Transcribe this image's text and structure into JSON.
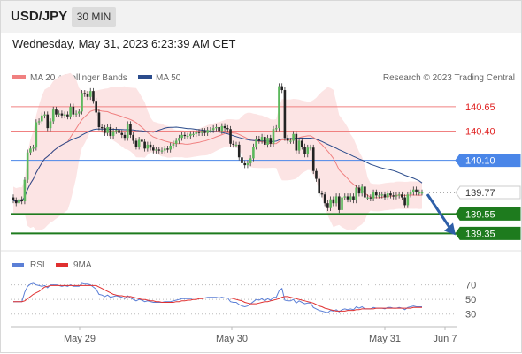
{
  "header": {
    "symbol": "USD/JPY",
    "timeframe": "30 MIN"
  },
  "datetime": "Wednesday, May 31, 2023 6:23:39 AM CET",
  "legend": {
    "ma20": "MA 20 + Bollinger Bands",
    "ma50": "MA 50",
    "ma20_color": "#f08080",
    "ma50_color": "#2b4c8c",
    "credit": "Research © 2023 Trading Central"
  },
  "rsi_legend": {
    "rsi": "RSI",
    "ma9": "9MA",
    "rsi_color": "#5b7fd6",
    "ma9_color": "#e03030"
  },
  "colors": {
    "up": "#5cb85c",
    "down": "#222222",
    "resistance": "#f08080",
    "pivot": "#4a86e8",
    "support": "#1e7b1e",
    "arrow": "#2e5fa8",
    "band": "#fce4e4"
  },
  "chart_data": [
    {
      "type": "candlestick",
      "title": "USD/JPY",
      "x_tick_labels": [
        "May 29",
        "May 30",
        "May 31",
        "Jun 7"
      ],
      "ylim": [
        139.2,
        140.92
      ],
      "levels": [
        {
          "label": "140.65",
          "value": 140.65,
          "kind": "resistance"
        },
        {
          "label": "140.40",
          "value": 140.4,
          "kind": "resistance"
        },
        {
          "label": "140.10",
          "value": 140.1,
          "kind": "pivot"
        },
        {
          "label": "139.77",
          "value": 139.77,
          "kind": "last"
        },
        {
          "label": "139.55",
          "value": 139.55,
          "kind": "support"
        },
        {
          "label": "139.35",
          "value": 139.35,
          "kind": "support"
        }
      ],
      "target_arrow": {
        "from": 139.77,
        "to": 139.35
      },
      "close": [
        139.69,
        139.66,
        139.7,
        139.68,
        139.9,
        140.18,
        140.22,
        140.23,
        140.49,
        140.5,
        140.56,
        140.57,
        140.43,
        140.5,
        140.62,
        140.57,
        140.58,
        140.56,
        140.57,
        140.55,
        140.65,
        140.57,
        140.58,
        140.6,
        140.79,
        140.78,
        140.75,
        140.81,
        140.71,
        140.59,
        140.44,
        140.43,
        140.38,
        140.44,
        140.35,
        140.4,
        140.41,
        140.38,
        140.36,
        140.33,
        140.47,
        140.36,
        140.3,
        140.24,
        140.31,
        140.29,
        140.22,
        140.26,
        140.23,
        140.2,
        140.21,
        140.2,
        140.2,
        140.22,
        140.21,
        140.25,
        140.27,
        140.3,
        140.33,
        140.36,
        140.35,
        140.35,
        140.37,
        140.37,
        140.39,
        140.38,
        140.4,
        140.38,
        140.41,
        140.41,
        140.43,
        140.44,
        140.4,
        140.45,
        140.43,
        140.42,
        140.27,
        140.26,
        140.26,
        140.13,
        140.07,
        140.05,
        140.07,
        140.12,
        140.24,
        140.32,
        140.3,
        140.34,
        140.26,
        140.33,
        140.27,
        140.42,
        140.43,
        140.86,
        140.82,
        140.33,
        140.3,
        140.3,
        140.37,
        140.2,
        140.3,
        140.24,
        140.16,
        140.23,
        140.23,
        139.99,
        139.91,
        139.76,
        139.75,
        139.66,
        139.61,
        139.7,
        139.66,
        139.73,
        139.59,
        139.72,
        139.73,
        139.7,
        139.73,
        139.69,
        139.82,
        139.76,
        139.83,
        139.72,
        139.72,
        139.71,
        139.77,
        139.74,
        139.74,
        139.75,
        139.72,
        139.76,
        139.74,
        139.73,
        139.74,
        139.75,
        139.72,
        139.64,
        139.75,
        139.77,
        139.8,
        139.77,
        139.77,
        139.77
      ],
      "open": [
        139.72,
        139.69,
        139.66,
        139.7,
        139.68,
        139.9,
        140.18,
        140.22,
        140.23,
        140.49,
        140.5,
        140.56,
        140.57,
        140.43,
        140.5,
        140.62,
        140.57,
        140.58,
        140.56,
        140.57,
        140.55,
        140.65,
        140.57,
        140.58,
        140.6,
        140.79,
        140.78,
        140.75,
        140.81,
        140.71,
        140.59,
        140.44,
        140.43,
        140.38,
        140.44,
        140.35,
        140.4,
        140.41,
        140.38,
        140.36,
        140.33,
        140.47,
        140.36,
        140.3,
        140.24,
        140.31,
        140.29,
        140.22,
        140.26,
        140.23,
        140.2,
        140.21,
        140.2,
        140.2,
        140.22,
        140.21,
        140.25,
        140.27,
        140.3,
        140.33,
        140.36,
        140.35,
        140.35,
        140.37,
        140.37,
        140.39,
        140.38,
        140.4,
        140.38,
        140.41,
        140.41,
        140.43,
        140.44,
        140.4,
        140.45,
        140.43,
        140.42,
        140.27,
        140.26,
        140.26,
        140.13,
        140.07,
        140.05,
        140.07,
        140.12,
        140.24,
        140.32,
        140.3,
        140.34,
        140.26,
        140.33,
        140.27,
        140.42,
        140.43,
        140.86,
        140.82,
        140.33,
        140.3,
        140.3,
        140.37,
        140.2,
        140.3,
        140.24,
        140.16,
        140.23,
        140.23,
        139.99,
        139.91,
        139.76,
        139.75,
        139.66,
        139.61,
        139.7,
        139.66,
        139.73,
        139.59,
        139.72,
        139.73,
        139.7,
        139.73,
        139.69,
        139.82,
        139.76,
        139.83,
        139.72,
        139.72,
        139.71,
        139.77,
        139.74,
        139.74,
        139.75,
        139.72,
        139.76,
        139.74,
        139.73,
        139.74,
        139.75,
        139.72,
        139.64,
        139.75,
        139.77,
        139.8,
        139.77,
        139.77
      ]
    },
    {
      "type": "line",
      "title": "RSI",
      "yticks": [
        70,
        50,
        30
      ],
      "ylim": [
        14,
        84
      ],
      "series": [
        {
          "name": "RSI",
          "values": [
            47,
            47,
            47,
            47,
            60,
            68,
            71,
            72,
            70,
            69,
            68,
            69,
            66,
            70,
            70,
            70,
            69,
            68,
            69,
            68,
            70,
            68,
            68,
            68,
            72,
            71,
            71,
            70,
            67,
            64,
            57,
            56,
            54,
            56,
            53,
            54,
            55,
            54,
            53,
            51,
            55,
            52,
            50,
            48,
            50,
            49,
            47,
            48,
            47,
            46,
            46,
            46,
            46,
            47,
            47,
            47,
            48,
            49,
            50,
            51,
            51,
            51,
            51,
            52,
            52,
            52,
            52,
            52,
            53,
            53,
            53,
            53,
            52,
            53,
            52,
            52,
            47,
            46,
            46,
            43,
            41,
            40,
            41,
            44,
            47,
            50,
            49,
            51,
            48,
            51,
            49,
            53,
            53,
            62,
            65,
            49,
            48,
            48,
            50,
            45,
            48,
            46,
            44,
            45,
            45,
            39,
            37,
            35,
            34,
            33,
            32,
            35,
            34,
            36,
            33,
            36,
            37,
            36,
            37,
            36,
            40,
            38,
            40,
            37,
            37,
            37,
            39,
            38,
            38,
            38,
            37,
            39,
            39,
            38,
            38,
            39,
            38,
            36,
            39,
            40,
            41,
            40,
            40,
            40
          ]
        },
        {
          "name": "9MA",
          "values": [
            47,
            47,
            47,
            47,
            48,
            51,
            54,
            57,
            59,
            61,
            64,
            67,
            68,
            69,
            69,
            69,
            69,
            69,
            69,
            69,
            69,
            69,
            69,
            69,
            69,
            69,
            69,
            69,
            69,
            69,
            67,
            65,
            63,
            61,
            59,
            57,
            56,
            55,
            55,
            54,
            54,
            54,
            53,
            52,
            51,
            50,
            50,
            49,
            48,
            48,
            47,
            47,
            46,
            46,
            46,
            46,
            46,
            47,
            47,
            48,
            48,
            49,
            49,
            50,
            50,
            51,
            51,
            52,
            52,
            52,
            52,
            52,
            52,
            52,
            52,
            52,
            52,
            51,
            50,
            49,
            48,
            46,
            45,
            44,
            44,
            44,
            45,
            46,
            47,
            47,
            48,
            49,
            50,
            51,
            53,
            54,
            54,
            53,
            52,
            51,
            50,
            49,
            48,
            47,
            46,
            45,
            43,
            41,
            40,
            38,
            37,
            36,
            35,
            34,
            34,
            34,
            34,
            35,
            35,
            35,
            36,
            36,
            37,
            37,
            37,
            37,
            37,
            38,
            38,
            38,
            38,
            38,
            38,
            38,
            38,
            38,
            38,
            38,
            38,
            38,
            39,
            39,
            39,
            39
          ]
        }
      ]
    }
  ]
}
